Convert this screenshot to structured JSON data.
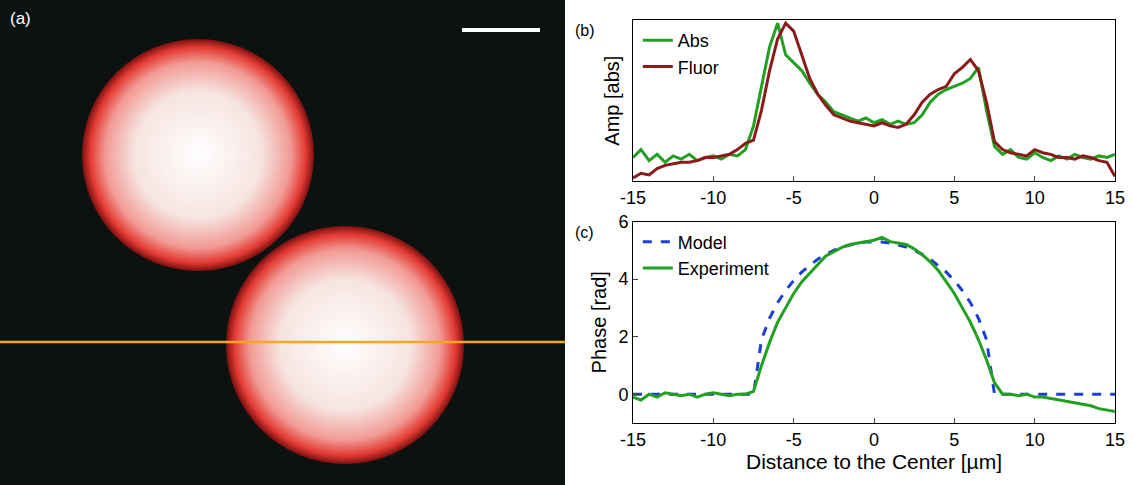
{
  "chart_data": [
    {
      "type": "image",
      "label": "(a)"
    },
    {
      "type": "line",
      "label": "(b)",
      "y_label": "Amp [abs]",
      "x": [
        -15,
        -14.5,
        -14,
        -13.5,
        -13,
        -12.5,
        -12,
        -11.5,
        -11,
        -10.5,
        -10,
        -9.5,
        -9,
        -8.5,
        -8,
        -7.5,
        -7,
        -6.5,
        -6,
        -5.5,
        -5,
        -4.5,
        -4,
        -3.5,
        -3,
        -2.5,
        -2,
        -1.5,
        -1,
        -0.5,
        0,
        0.5,
        1,
        1.5,
        2,
        2.5,
        3,
        3.5,
        4,
        4.5,
        5,
        5.5,
        6,
        6.5,
        7,
        7.5,
        8,
        8.5,
        9,
        9.5,
        10,
        10.5,
        11,
        11.5,
        12,
        12.5,
        13,
        13.5,
        14,
        14.5,
        15
      ],
      "series": [
        {
          "name": "Abs",
          "color": "#22a022",
          "values": [
            0.15,
            0.2,
            0.13,
            0.17,
            0.12,
            0.16,
            0.14,
            0.17,
            0.13,
            0.15,
            0.16,
            0.14,
            0.17,
            0.16,
            0.2,
            0.35,
            0.6,
            0.85,
            1.0,
            0.8,
            0.75,
            0.7,
            0.62,
            0.55,
            0.5,
            0.44,
            0.42,
            0.4,
            0.38,
            0.4,
            0.37,
            0.39,
            0.36,
            0.38,
            0.36,
            0.37,
            0.42,
            0.5,
            0.55,
            0.58,
            0.6,
            0.62,
            0.65,
            0.72,
            0.45,
            0.22,
            0.17,
            0.2,
            0.15,
            0.14,
            0.18,
            0.15,
            0.13,
            0.16,
            0.14,
            0.17,
            0.15,
            0.14,
            0.16,
            0.15,
            0.17
          ]
        },
        {
          "name": "Fluor",
          "color": "#8b1a1a",
          "values": [
            0.02,
            0.05,
            0.04,
            0.08,
            0.1,
            0.11,
            0.12,
            0.12,
            0.13,
            0.15,
            0.15,
            0.16,
            0.17,
            0.2,
            0.24,
            0.26,
            0.45,
            0.7,
            0.9,
            1.0,
            0.95,
            0.8,
            0.65,
            0.55,
            0.48,
            0.42,
            0.4,
            0.38,
            0.37,
            0.36,
            0.35,
            0.37,
            0.35,
            0.34,
            0.36,
            0.42,
            0.5,
            0.55,
            0.58,
            0.6,
            0.68,
            0.72,
            0.77,
            0.7,
            0.5,
            0.25,
            0.2,
            0.18,
            0.17,
            0.16,
            0.2,
            0.18,
            0.17,
            0.15,
            0.15,
            0.14,
            0.16,
            0.15,
            0.13,
            0.12,
            0.03
          ]
        }
      ],
      "xlim": [
        -15,
        15
      ],
      "xticks": [
        -15,
        -10,
        -5,
        0,
        5,
        10,
        15
      ],
      "ylim": [
        0,
        1.02
      ],
      "tick_labels": "x",
      "grid": false,
      "legend": "upper left"
    },
    {
      "type": "line",
      "label": "(c)",
      "x_label": "Distance to the Center [µm]",
      "y_label": "Phase [rad]",
      "x": [
        -15,
        -14.5,
        -14,
        -13.5,
        -13,
        -12.5,
        -12,
        -11.5,
        -11,
        -10.5,
        -10,
        -9.5,
        -9,
        -8.5,
        -8,
        -7.5,
        -7,
        -6.5,
        -6,
        -5.5,
        -5,
        -4.5,
        -4,
        -3.5,
        -3,
        -2.5,
        -2,
        -1.5,
        -1,
        -0.5,
        0,
        0.5,
        1,
        1.5,
        2,
        2.5,
        3,
        3.5,
        4,
        4.5,
        5,
        5.5,
        6,
        6.5,
        7,
        7.5,
        8,
        8.5,
        9,
        9.5,
        10,
        10.5,
        11,
        11.5,
        12,
        12.5,
        13,
        13.5,
        14,
        14.5,
        15
      ],
      "series": [
        {
          "name": "Model",
          "color": "#1f3fd0",
          "line_style": "dashed",
          "values": [
            0,
            0,
            0,
            0,
            0,
            0,
            0,
            0,
            0,
            0,
            0,
            0,
            0,
            0,
            0,
            0,
            1.9,
            2.64,
            3.18,
            3.6,
            3.95,
            4.24,
            4.48,
            4.69,
            4.86,
            5.0,
            5.11,
            5.19,
            5.25,
            5.29,
            5.3,
            5.29,
            5.25,
            5.19,
            5.11,
            5.0,
            4.86,
            4.69,
            4.48,
            4.24,
            3.95,
            3.6,
            3.18,
            2.64,
            1.9,
            0,
            0,
            0,
            0,
            0,
            0,
            0,
            0,
            0,
            0,
            0,
            0,
            0,
            0,
            0,
            0
          ]
        },
        {
          "name": "Experiment",
          "color": "#22a022",
          "line_style": "solid",
          "values": [
            -0.1,
            -0.2,
            0,
            -0.1,
            0.05,
            0,
            -0.05,
            0,
            -0.1,
            0,
            0.05,
            0,
            -0.05,
            0,
            0,
            0.1,
            1.0,
            1.8,
            2.5,
            3.0,
            3.5,
            3.9,
            4.2,
            4.5,
            4.8,
            4.95,
            5.1,
            5.2,
            5.25,
            5.3,
            5.35,
            5.45,
            5.3,
            5.25,
            5.2,
            5.05,
            4.85,
            4.6,
            4.3,
            3.9,
            3.5,
            3.0,
            2.5,
            1.9,
            1.2,
            0.4,
            0,
            0,
            -0.05,
            0,
            -0.1,
            -0.1,
            -0.15,
            -0.2,
            -0.25,
            -0.3,
            -0.35,
            -0.4,
            -0.5,
            -0.55,
            -0.6
          ]
        }
      ],
      "xlim": [
        -15,
        15
      ],
      "xticks": [
        -15,
        -10,
        -5,
        0,
        5,
        10,
        15
      ],
      "ylim": [
        -1,
        6
      ],
      "yticks": [
        0,
        2,
        4,
        6
      ],
      "grid": false,
      "legend": "upper left"
    }
  ]
}
